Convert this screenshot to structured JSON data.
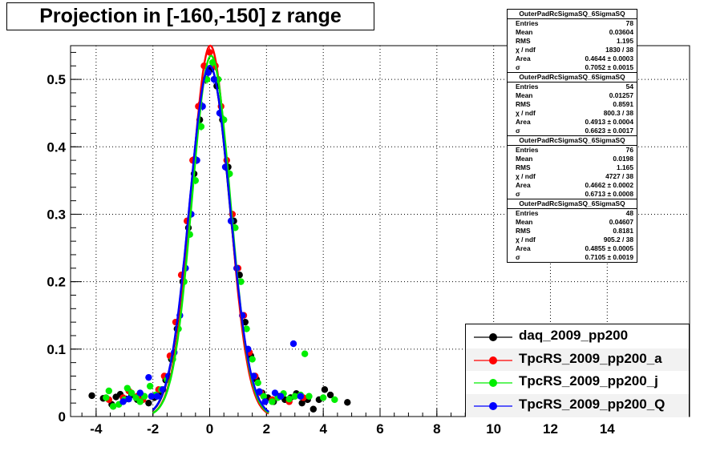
{
  "title": "Projection in [-160,-150] z range",
  "chart_data": {
    "type": "scatter",
    "title": "Projection in [-160,-150] z range",
    "xlim": [
      -4.9,
      16.9
    ],
    "ylim": [
      0,
      0.55
    ],
    "xticks": [
      -4,
      -2,
      0,
      2,
      4,
      6,
      8,
      10,
      12,
      14
    ],
    "yticks": [
      0,
      0.1,
      0.2,
      0.3,
      0.4,
      0.5
    ],
    "grid": true,
    "legend_position": "bottom-right",
    "series": [
      {
        "name": "daq_2009_pp200",
        "color": "#000000",
        "fit": {
          "mean": 0.0,
          "sigma": 0.7052,
          "amplitude": 0.52
        },
        "points": [
          [
            -4.15,
            0.031
          ],
          [
            -3.75,
            0.027
          ],
          [
            -3.45,
            0.018
          ],
          [
            -3.3,
            0.029
          ],
          [
            -3.15,
            0.033
          ],
          [
            -2.95,
            0.026
          ],
          [
            -2.75,
            0.032
          ],
          [
            -2.55,
            0.025
          ],
          [
            -2.35,
            0.03
          ],
          [
            -2.15,
            0.02
          ],
          [
            -1.95,
            0.028
          ],
          [
            -1.75,
            0.036
          ],
          [
            -1.55,
            0.054
          ],
          [
            -1.35,
            0.085
          ],
          [
            -1.15,
            0.13
          ],
          [
            -0.95,
            0.2
          ],
          [
            -0.75,
            0.28
          ],
          [
            -0.55,
            0.36
          ],
          [
            -0.35,
            0.44
          ],
          [
            -0.15,
            0.5
          ],
          [
            0.05,
            0.515
          ],
          [
            0.25,
            0.49
          ],
          [
            0.45,
            0.44
          ],
          [
            0.65,
            0.37
          ],
          [
            0.85,
            0.29
          ],
          [
            1.05,
            0.21
          ],
          [
            1.25,
            0.14
          ],
          [
            1.45,
            0.09
          ],
          [
            1.65,
            0.055
          ],
          [
            1.85,
            0.035
          ],
          [
            2.05,
            0.028
          ],
          [
            2.25,
            0.022
          ],
          [
            2.45,
            0.03
          ],
          [
            2.65,
            0.025
          ],
          [
            2.85,
            0.028
          ],
          [
            3.05,
            0.034
          ],
          [
            3.25,
            0.02
          ],
          [
            3.45,
            0.025
          ],
          [
            3.65,
            0.011
          ],
          [
            3.85,
            0.025
          ],
          [
            4.05,
            0.04
          ],
          [
            4.25,
            0.032
          ],
          [
            4.85,
            0.021
          ]
        ]
      },
      {
        "name": "TpcRS_2009_pp200_a",
        "color": "#ff0000",
        "fit": {
          "mean": 0.02,
          "sigma": 0.6623,
          "amplitude": 0.55
        },
        "points": [
          [
            -3.55,
            0.025
          ],
          [
            -3.05,
            0.028
          ],
          [
            -2.85,
            0.038
          ],
          [
            -2.55,
            0.03
          ],
          [
            -2.35,
            0.025
          ],
          [
            -2.05,
            0.03
          ],
          [
            -1.8,
            0.04
          ],
          [
            -1.6,
            0.06
          ],
          [
            -1.4,
            0.09
          ],
          [
            -1.2,
            0.14
          ],
          [
            -1.0,
            0.21
          ],
          [
            -0.8,
            0.29
          ],
          [
            -0.6,
            0.38
          ],
          [
            -0.4,
            0.46
          ],
          [
            -0.2,
            0.52
          ],
          [
            0.0,
            0.54
          ],
          [
            0.2,
            0.52
          ],
          [
            0.4,
            0.46
          ],
          [
            0.6,
            0.38
          ],
          [
            0.8,
            0.3
          ],
          [
            1.0,
            0.22
          ],
          [
            1.2,
            0.15
          ],
          [
            1.4,
            0.095
          ],
          [
            1.6,
            0.06
          ],
          [
            1.8,
            0.035
          ],
          [
            2.2,
            0.025
          ],
          [
            2.5,
            0.03
          ],
          [
            2.8,
            0.022
          ],
          [
            3.3,
            0.028
          ]
        ]
      },
      {
        "name": "TpcRS_2009_pp200_j",
        "color": "#00ee00",
        "fit": {
          "mean": 0.05,
          "sigma": 0.6713,
          "amplitude": 0.535
        },
        "points": [
          [
            -3.65,
            0.028
          ],
          [
            -3.55,
            0.038
          ],
          [
            -3.4,
            0.015
          ],
          [
            -3.2,
            0.018
          ],
          [
            -3.0,
            0.025
          ],
          [
            -2.9,
            0.042
          ],
          [
            -2.75,
            0.035
          ],
          [
            -2.6,
            0.028
          ],
          [
            -2.45,
            0.022
          ],
          [
            -2.3,
            0.03
          ],
          [
            -2.1,
            0.045
          ],
          [
            -1.9,
            0.032
          ],
          [
            -1.7,
            0.04
          ],
          [
            -1.5,
            0.055
          ],
          [
            -1.3,
            0.085
          ],
          [
            -1.1,
            0.13
          ],
          [
            -0.9,
            0.2
          ],
          [
            -0.7,
            0.27
          ],
          [
            -0.5,
            0.35
          ],
          [
            -0.3,
            0.43
          ],
          [
            -0.1,
            0.5
          ],
          [
            0.1,
            0.525
          ],
          [
            0.3,
            0.5
          ],
          [
            0.5,
            0.44
          ],
          [
            0.7,
            0.36
          ],
          [
            0.9,
            0.28
          ],
          [
            1.1,
            0.2
          ],
          [
            1.3,
            0.13
          ],
          [
            1.5,
            0.085
          ],
          [
            1.7,
            0.05
          ],
          [
            1.9,
            0.03
          ],
          [
            2.2,
            0.022
          ],
          [
            2.4,
            0.028
          ],
          [
            2.6,
            0.034
          ],
          [
            2.8,
            0.026
          ],
          [
            3.0,
            0.03
          ],
          [
            3.2,
            0.032
          ],
          [
            3.35,
            0.093
          ],
          [
            3.5,
            0.03
          ],
          [
            4.0,
            0.028
          ],
          [
            4.4,
            0.025
          ]
        ]
      },
      {
        "name": "TpcRS_2009_pp200_Q",
        "color": "#0000ff",
        "fit": {
          "mean": 0.0,
          "sigma": 0.7105,
          "amplitude": 0.52
        },
        "points": [
          [
            -3.05,
            0.022
          ],
          [
            -2.85,
            0.026
          ],
          [
            -2.45,
            0.035
          ],
          [
            -2.15,
            0.058
          ],
          [
            -2.05,
            0.03
          ],
          [
            -1.85,
            0.03
          ],
          [
            -1.65,
            0.04
          ],
          [
            -1.45,
            0.06
          ],
          [
            -1.25,
            0.095
          ],
          [
            -1.05,
            0.15
          ],
          [
            -0.85,
            0.22
          ],
          [
            -0.65,
            0.3
          ],
          [
            -0.45,
            0.38
          ],
          [
            -0.25,
            0.46
          ],
          [
            -0.05,
            0.51
          ],
          [
            0.15,
            0.5
          ],
          [
            0.35,
            0.45
          ],
          [
            0.55,
            0.37
          ],
          [
            0.75,
            0.29
          ],
          [
            0.95,
            0.22
          ],
          [
            1.15,
            0.15
          ],
          [
            1.35,
            0.1
          ],
          [
            1.55,
            0.06
          ],
          [
            1.75,
            0.037
          ],
          [
            1.95,
            0.022
          ],
          [
            2.3,
            0.035
          ],
          [
            2.5,
            0.03
          ],
          [
            2.95,
            0.108
          ],
          [
            3.2,
            0.03
          ]
        ]
      }
    ]
  },
  "stats_boxes": [
    {
      "name": "OuterPadRcSigmaSQ_6SigmaSQ",
      "rows": [
        {
          "label": "Entries",
          "value": "78"
        },
        {
          "label": "Mean",
          "value": "0.03604"
        },
        {
          "label": "RMS",
          "value": "1.195"
        },
        {
          "label": "χ  / ndf",
          "value": "1830 / 38"
        },
        {
          "label": "Area",
          "value": "0.4644 ± 0.0003"
        },
        {
          "label": "σ",
          "value": "0.7052 ± 0.0015"
        }
      ]
    },
    {
      "name": "OuterPadRcSigmaSQ_6SigmaSQ",
      "rows": [
        {
          "label": "Entries",
          "value": "54"
        },
        {
          "label": "Mean",
          "value": "0.01257"
        },
        {
          "label": "RMS",
          "value": "0.8591"
        },
        {
          "label": "χ  / ndf",
          "value": "800.3 / 38"
        },
        {
          "label": "Area",
          "value": "0.4913 ± 0.0004"
        },
        {
          "label": "σ",
          "value": "0.6623 ± 0.0017"
        }
      ]
    },
    {
      "name": "OuterPadRcSigmaSQ_6SigmaSQ",
      "rows": [
        {
          "label": "Entries",
          "value": "76"
        },
        {
          "label": "Mean",
          "value": "0.0198"
        },
        {
          "label": "RMS",
          "value": "1.165"
        },
        {
          "label": "χ  / ndf",
          "value": "4727 / 38"
        },
        {
          "label": "Area",
          "value": "0.4662 ± 0.0002"
        },
        {
          "label": "σ",
          "value": "0.6713 ± 0.0008"
        }
      ]
    },
    {
      "name": "OuterPadRcSigmaSQ_6SigmaSQ",
      "rows": [
        {
          "label": "Entries",
          "value": "48"
        },
        {
          "label": "Mean",
          "value": "0.04607"
        },
        {
          "label": "RMS",
          "value": "0.8181"
        },
        {
          "label": "χ  / ndf",
          "value": "905.2 / 38"
        },
        {
          "label": "Area",
          "value": "0.4855 ± 0.0005"
        },
        {
          "label": "σ",
          "value": "0.7105 ± 0.0019"
        }
      ]
    }
  ]
}
